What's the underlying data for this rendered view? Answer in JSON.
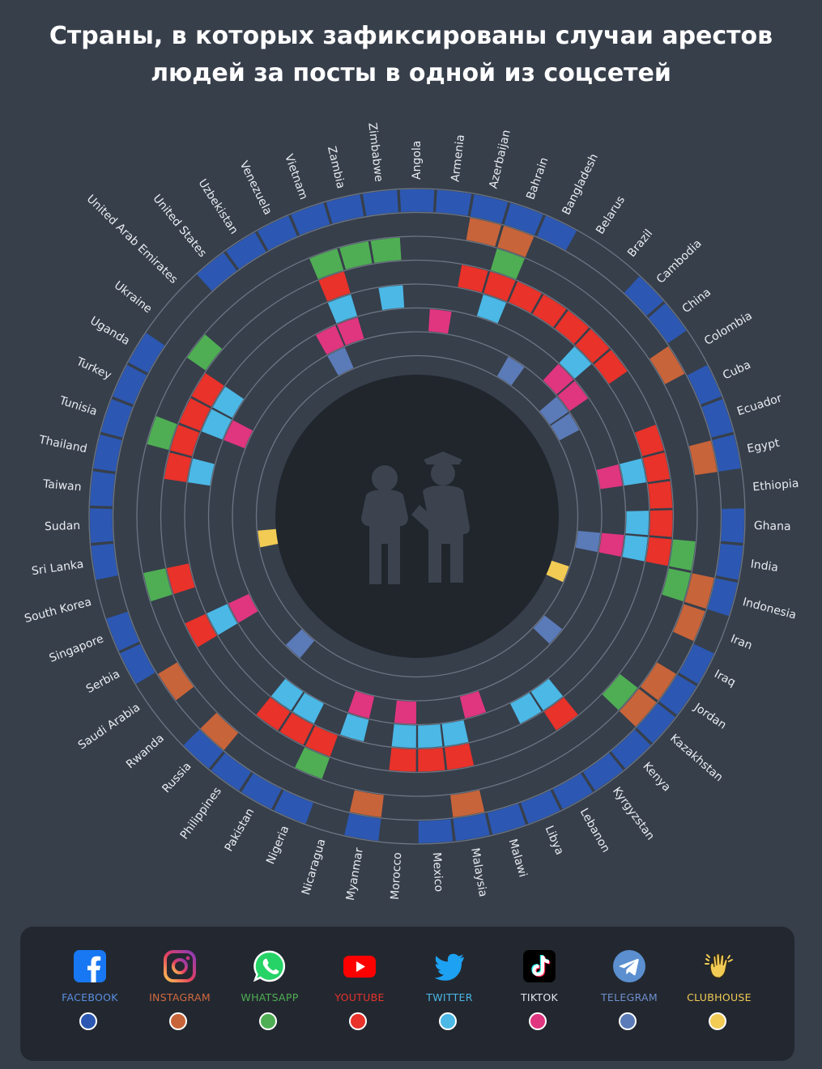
{
  "title_lines": [
    "Страны, в которых зафиксированы случаи арестов",
    "людей за посты в одной из соцсетей"
  ],
  "chart_data": {
    "type": "radial-heatmap",
    "title": "Страны, в которых зафиксированы случаи арестов людей за посты в одной из соцсетей",
    "countries": [
      "Angola",
      "Armenia",
      "Azerbaijan",
      "Bahrain",
      "Bangladesh",
      "Belarus",
      "Brazil",
      "Cambodia",
      "China",
      "Colombia",
      "Cuba",
      "Ecuador",
      "Egypt",
      "Ethiopia",
      "Ghana",
      "India",
      "Indonesia",
      "Iran",
      "Iraq",
      "Jordan",
      "Kazakhstan",
      "Kenya",
      "Kyrgyzstan",
      "Lebanon",
      "Libya",
      "Malawi",
      "Malaysia",
      "Mexico",
      "Morocco",
      "Myanmar",
      "Nicaragua",
      "Nigeria",
      "Pakistan",
      "Philippines",
      "Russia",
      "Rwanda",
      "Saudi Arabia",
      "Serbia",
      "Singapore",
      "South Korea",
      "Sri Lanka",
      "Sudan",
      "Taiwan",
      "Thailand",
      "Tunisia",
      "Turkey",
      "Uganda",
      "Ukraine",
      "United Arab Emirates",
      "United States",
      "Uzbekistan",
      "Venezuela",
      "Vietnam",
      "Zambia",
      "Zimbabwe"
    ],
    "series": [
      {
        "name": "FACEBOOK",
        "color": "#2c58b3",
        "countries": [
          "Angola",
          "Armenia",
          "Azerbaijan",
          "Bahrain",
          "Bangladesh",
          "Cambodia",
          "China",
          "Cuba",
          "Ecuador",
          "Egypt",
          "Ghana",
          "India",
          "Indonesia",
          "Iraq",
          "Jordan",
          "Kazakhstan",
          "Kenya",
          "Kyrgyzstan",
          "Lebanon",
          "Libya",
          "Malawi",
          "Malaysia",
          "Mexico",
          "Myanmar",
          "Nigeria",
          "Pakistan",
          "Philippines",
          "Russia",
          "Serbia",
          "Singapore",
          "Sri Lanka",
          "Sudan",
          "Taiwan",
          "Thailand",
          "Tunisia",
          "Turkey",
          "Uganda",
          "United States",
          "Uzbekistan",
          "Venezuela",
          "Vietnam",
          "Zambia",
          "Zimbabwe"
        ]
      },
      {
        "name": "INSTAGRAM",
        "color": "#c8643a",
        "countries": [
          "Azerbaijan",
          "Bahrain",
          "Colombia",
          "Egypt",
          "Indonesia",
          "Iran",
          "Jordan",
          "Kazakhstan",
          "Malaysia",
          "Myanmar",
          "Russia",
          "Saudi Arabia"
        ]
      },
      {
        "name": "WHATSAPP",
        "color": "#4fae54",
        "countries": [
          "Bahrain",
          "India",
          "Indonesia",
          "Kazakhstan",
          "Nigeria",
          "South Korea",
          "Tunisia",
          "Ukraine",
          "Vietnam",
          "Zambia",
          "Zimbabwe"
        ]
      },
      {
        "name": "YOUTUBE",
        "color": "#e8322a",
        "countries": [
          "Azerbaijan",
          "Bahrain",
          "Bangladesh",
          "Belarus",
          "Brazil",
          "Cambodia",
          "China",
          "Ecuador",
          "Egypt",
          "Ethiopia",
          "Ghana",
          "India",
          "Kyrgyzstan",
          "Malaysia",
          "Mexico",
          "Morocco",
          "Nigeria",
          "Pakistan",
          "Philippines",
          "Serbia",
          "South Korea",
          "Thailand",
          "Tunisia",
          "Turkey",
          "Uganda",
          "Vietnam"
        ]
      },
      {
        "name": "TWITTER",
        "color": "#4bb8e6",
        "countries": [
          "Bahrain",
          "Cambodia",
          "Egypt",
          "Ghana",
          "India",
          "Kyrgyzstan",
          "Lebanon",
          "Malaysia",
          "Mexico",
          "Morocco",
          "Nicaragua",
          "Pakistan",
          "Philippines",
          "Serbia",
          "Thailand",
          "Turkey",
          "Uganda",
          "Vietnam",
          "Zimbabwe"
        ]
      },
      {
        "name": "TIKTOK",
        "color": "#e0357f",
        "countries": [
          "Armenia",
          "Cambodia",
          "China",
          "Egypt",
          "India",
          "Malawi",
          "Morocco",
          "Nicaragua",
          "Serbia",
          "Turkey",
          "Venezuela",
          "Vietnam"
        ]
      },
      {
        "name": "TELEGRAM",
        "color": "#5b7bb8",
        "countries": [
          "Belarus",
          "China",
          "Colombia",
          "India",
          "Kazakhstan",
          "Russia",
          "Venezuela"
        ]
      },
      {
        "name": "CLUBHOUSE",
        "color": "#f2cb55",
        "countries": [
          "Iran",
          "Sri Lanka"
        ]
      }
    ]
  },
  "legend": [
    {
      "label": "FACEBOOK",
      "color": "#2c58b3",
      "icon": "facebook-icon"
    },
    {
      "label": "INSTAGRAM",
      "color": "#c8643a",
      "icon": "instagram-icon"
    },
    {
      "label": "WHATSAPP",
      "color": "#4fae54",
      "icon": "whatsapp-icon"
    },
    {
      "label": "YOUTUBE",
      "color": "#e8322a",
      "icon": "youtube-icon"
    },
    {
      "label": "TWITTER",
      "color": "#4bb8e6",
      "icon": "twitter-icon"
    },
    {
      "label": "TIKTOK",
      "color": "#e0357f",
      "icon": "tiktok-icon"
    },
    {
      "label": "TELEGRAM",
      "color": "#5b7bb8",
      "icon": "telegram-icon"
    },
    {
      "label": "CLUBHOUSE",
      "color": "#f2cb55",
      "icon": "clubhouse-icon"
    }
  ],
  "center_icon": "arrest-icon"
}
